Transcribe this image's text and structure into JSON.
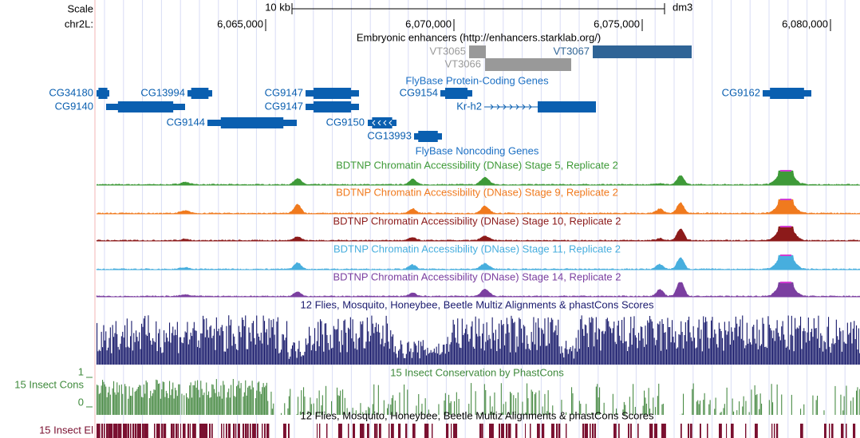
{
  "scale": {
    "label": "Scale",
    "size": "10 kb",
    "assembly": "dm3"
  },
  "position": {
    "chrom": "chr2L:",
    "ticks": [
      "6,065,000",
      "6,070,000",
      "6,075,000",
      "6,080,000"
    ]
  },
  "enhancers": {
    "title": "Embryonic enhancers (http://enhancers.starklab.org/)",
    "items": [
      "VT3065",
      "VT3066",
      "VT3067"
    ]
  },
  "genes": {
    "title": "FlyBase Protein-Coding Genes",
    "items": [
      "CG34180",
      "CG13994",
      "CG9147",
      "CG9154",
      "CG9162",
      "CG9140",
      "CG9147",
      "Kr-h2",
      "CG9144",
      "CG9150",
      "CG13993"
    ]
  },
  "noncoding": {
    "title": "FlyBase Noncoding Genes"
  },
  "dnase": [
    "BDTNP Chromatin Accessibility (DNase) Stage 5, Replicate 2",
    "BDTNP Chromatin Accessibility (DNase) Stage 9, Replicate 2",
    "BDTNP Chromatin Accessibility (DNase) Stage 10, Replicate 2",
    "BDTNP Chromatin Accessibility (DNase) Stage 11, Replicate 2",
    "BDTNP Chromatin Accessibility (DNase) Stage 14, Replicate 2"
  ],
  "multiz": {
    "title": "12 Flies, Mosquito, Honeybee, Beetle Multiz Alignments & phastCons Scores"
  },
  "phastcons": {
    "label": "15 Insect Cons",
    "title": "15 Insect Conservation by PhastCons",
    "ymax": 1,
    "ymin": 0
  },
  "elements": {
    "label": "15 Insect El",
    "title": "12 Flies, Mosquito, Honeybee, Beetle Multiz Alignments & phastCons Scores"
  }
}
